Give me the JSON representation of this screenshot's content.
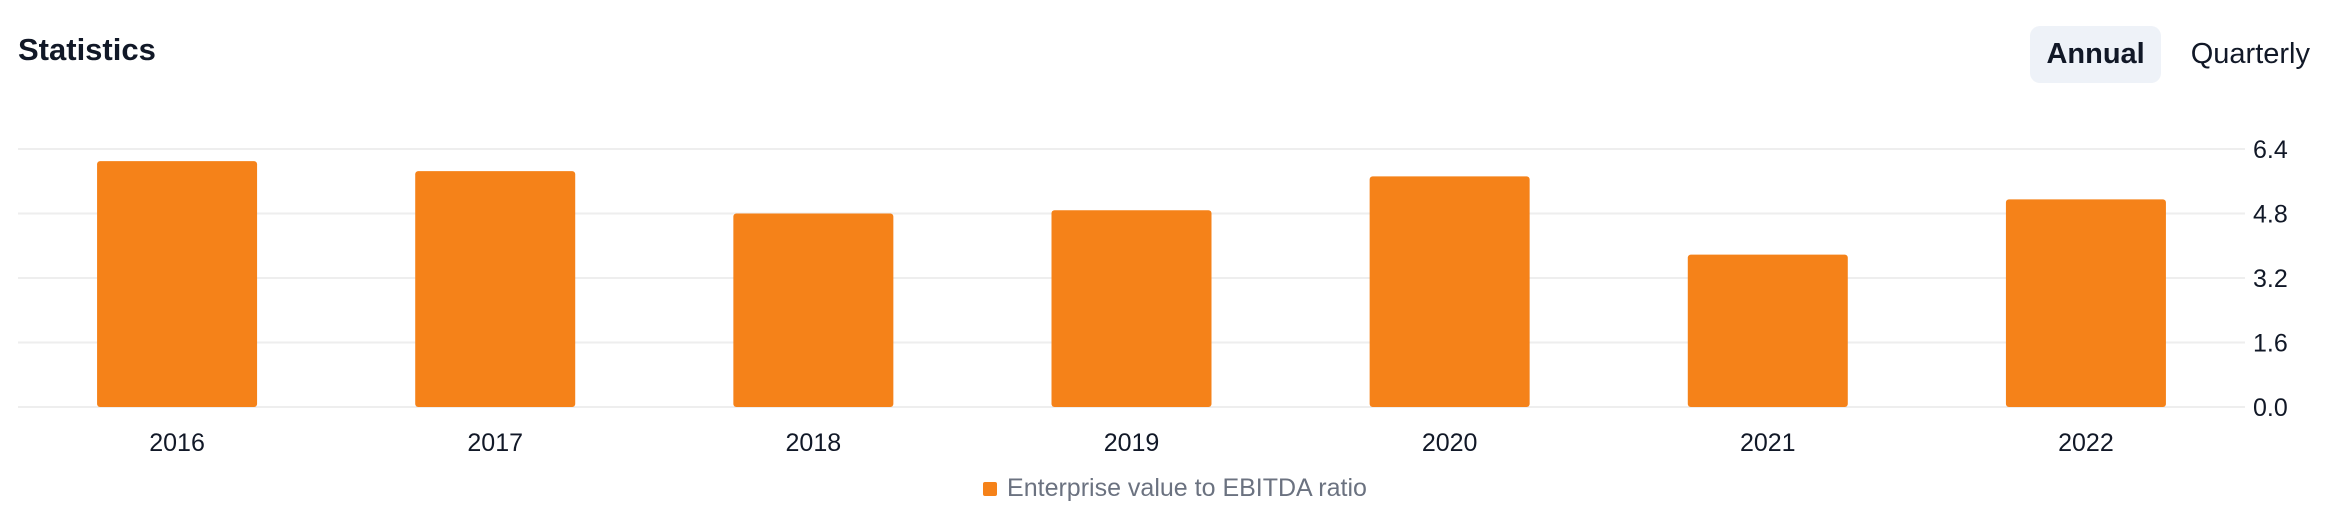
{
  "header": {
    "title": "Statistics",
    "tabs": [
      {
        "label": "Annual",
        "active": true
      },
      {
        "label": "Quarterly",
        "active": false
      }
    ]
  },
  "colors": {
    "bar": "#f58219",
    "grid": "#eeeeee",
    "active_tab_bg": "#eef2f8"
  },
  "chart_data": {
    "type": "bar",
    "categories": [
      "2016",
      "2017",
      "2018",
      "2019",
      "2020",
      "2021",
      "2022"
    ],
    "series": [
      {
        "name": "Enterprise value to EBITDA ratio",
        "values": [
          6.1,
          5.85,
          4.8,
          4.88,
          5.72,
          3.78,
          5.15
        ]
      }
    ],
    "yticks": [
      "0.0",
      "1.6",
      "3.2",
      "4.8",
      "6.4"
    ],
    "ylim": [
      0,
      6.4
    ],
    "y_axis_position": "right",
    "grid": true,
    "legend_position": "bottom-center"
  }
}
